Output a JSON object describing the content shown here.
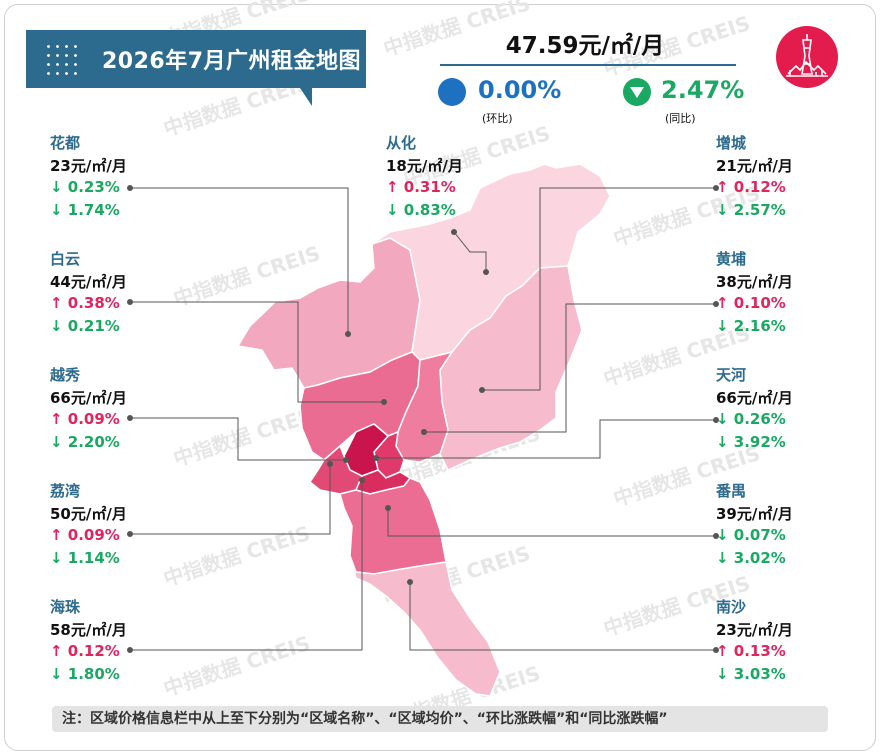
{
  "title": "2026年7月广州租金地图",
  "summary": {
    "avg_price": "47.59元/㎡/月",
    "mom_value": "0.00%",
    "mom_label": "(环比)",
    "yoy_value": "2.47%",
    "yoy_label": "(同比)"
  },
  "watermark": "中指数据 CREIS",
  "colors": {
    "title_bg": "#2d6b8e",
    "up": "#e0245e",
    "down": "#1aa863",
    "mom": "#1e70c1",
    "badge": "#e41b4d"
  },
  "districts": [
    {
      "name": "花都",
      "price": "23元/㎡/月",
      "mom": "↓ 0.23%",
      "mom_dir": "down",
      "yoy": "↓ 1.74%",
      "yoy_dir": "down"
    },
    {
      "name": "白云",
      "price": "44元/㎡/月",
      "mom": "↑ 0.38%",
      "mom_dir": "up",
      "yoy": "↓ 0.21%",
      "yoy_dir": "down"
    },
    {
      "name": "越秀",
      "price": "66元/㎡/月",
      "mom": "↑ 0.09%",
      "mom_dir": "up",
      "yoy": "↓ 2.20%",
      "yoy_dir": "down"
    },
    {
      "name": "荔湾",
      "price": "50元/㎡/月",
      "mom": "↑ 0.09%",
      "mom_dir": "up",
      "yoy": "↓ 1.14%",
      "yoy_dir": "down"
    },
    {
      "name": "海珠",
      "price": "58元/㎡/月",
      "mom": "↑ 0.12%",
      "mom_dir": "up",
      "yoy": "↓ 1.80%",
      "yoy_dir": "down"
    },
    {
      "name": "从化",
      "price": "18元/㎡/月",
      "mom": "↑ 0.31%",
      "mom_dir": "up",
      "yoy": "↓ 0.83%",
      "yoy_dir": "down"
    },
    {
      "name": "增城",
      "price": "21元/㎡/月",
      "mom": "↑ 0.12%",
      "mom_dir": "up",
      "yoy": "↓ 2.57%",
      "yoy_dir": "down"
    },
    {
      "name": "黄埔",
      "price": "38元/㎡/月",
      "mom": "↑ 0.10%",
      "mom_dir": "up",
      "yoy": "↓ 2.16%",
      "yoy_dir": "down"
    },
    {
      "name": "天河",
      "price": "66元/㎡/月",
      "mom": "↓ 0.26%",
      "mom_dir": "down",
      "yoy": "↓ 3.92%",
      "yoy_dir": "down"
    },
    {
      "name": "番禺",
      "price": "39元/㎡/月",
      "mom": "↓ 0.07%",
      "mom_dir": "down",
      "yoy": "↓ 3.02%",
      "yoy_dir": "down"
    },
    {
      "name": "南沙",
      "price": "23元/㎡/月",
      "mom": "↑ 0.13%",
      "mom_dir": "up",
      "yoy": "↓ 3.03%",
      "yoy_dir": "down"
    }
  ],
  "note": "注：区域价格信息栏中从上至下分别为“区域名称”、“区域均价”、“环比涨跌幅”和“同比涨跌幅”"
}
